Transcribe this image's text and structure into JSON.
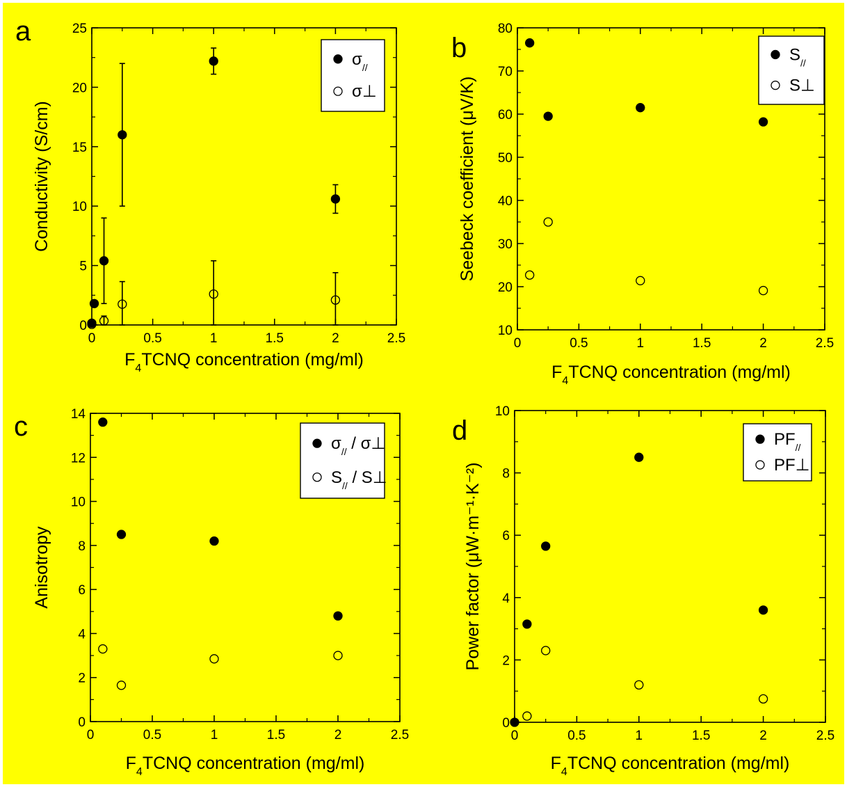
{
  "colors": {
    "background": "#ffff00",
    "ink": "#000000",
    "page": "#ffffff"
  },
  "chart_data": [
    {
      "type": "scatter",
      "panel": "a",
      "xlabel": {
        "pre": "F",
        "sub": "4",
        "post": "TCNQ concentration (mg/ml)"
      },
      "ylabel": "Conductivity (S/cm)",
      "xlim": [
        0,
        2.5
      ],
      "ylim": [
        0,
        25
      ],
      "xticks": [
        "0",
        "0.5",
        "1",
        "1.5",
        "2",
        "2.5"
      ],
      "yticks": [
        "0",
        "5",
        "10",
        "15",
        "20",
        "25"
      ],
      "legend_position": "top-right",
      "series": [
        {
          "legend": {
            "main": "σ",
            "sub": "//",
            "post": ""
          },
          "marker": "filled",
          "x": [
            0,
            0.02,
            0.1,
            0.25,
            1,
            2
          ],
          "y": [
            0.15,
            1.8,
            5.4,
            16,
            22.2,
            10.6
          ],
          "yerr_low": [
            0,
            0,
            3.6,
            6,
            1.1,
            1.2
          ],
          "yerr_high": [
            0,
            0,
            3.6,
            6,
            1.1,
            1.2
          ]
        },
        {
          "legend": {
            "main": "σ⊥",
            "sub": "",
            "post": ""
          },
          "marker": "open",
          "x": [
            0,
            0.1,
            0.25,
            1,
            2
          ],
          "y": [
            0.05,
            0.35,
            1.75,
            2.6,
            2.1
          ],
          "yerr_low": [
            0,
            0.35,
            1.75,
            2.6,
            2.1
          ],
          "yerr_high": [
            0,
            0.4,
            1.9,
            2.8,
            2.3
          ]
        }
      ]
    },
    {
      "type": "scatter",
      "panel": "b",
      "xlabel": {
        "pre": "F",
        "sub": "4",
        "post": "TCNQ concentration (mg/ml)"
      },
      "ylabel": "Seebeck coefficient (μV/K)",
      "xlim": [
        0,
        2.5
      ],
      "ylim": [
        10,
        80
      ],
      "xticks": [
        "0",
        "0.5",
        "1",
        "1.5",
        "2",
        "2.5"
      ],
      "yticks": [
        "10",
        "20",
        "30",
        "40",
        "50",
        "60",
        "70",
        "80"
      ],
      "legend_position": "top-right",
      "series": [
        {
          "legend": {
            "main": "S",
            "sub": "//",
            "post": ""
          },
          "marker": "filled",
          "x": [
            0.1,
            0.25,
            1,
            2
          ],
          "y": [
            76.5,
            59.5,
            61.5,
            58.2
          ]
        },
        {
          "legend": {
            "main": "S⊥",
            "sub": "",
            "post": ""
          },
          "marker": "open",
          "x": [
            0.1,
            0.25,
            1,
            2
          ],
          "y": [
            22.7,
            35,
            21.4,
            19.1
          ]
        }
      ]
    },
    {
      "type": "scatter",
      "panel": "c",
      "xlabel": {
        "pre": "F",
        "sub": "4",
        "post": "TCNQ concentration (mg/ml)"
      },
      "ylabel": "Anisotropy",
      "xlim": [
        0,
        2.5
      ],
      "ylim": [
        0,
        14
      ],
      "xticks": [
        "0",
        "0.5",
        "1",
        "1.5",
        "2",
        "2.5"
      ],
      "yticks": [
        "0",
        "2",
        "4",
        "6",
        "8",
        "10",
        "12",
        "14"
      ],
      "legend_position": "top-right",
      "series": [
        {
          "legend": {
            "main": "σ",
            "sub": "//",
            "post": " / σ⊥"
          },
          "marker": "filled",
          "x": [
            0.1,
            0.25,
            1,
            2
          ],
          "y": [
            13.6,
            8.5,
            8.2,
            4.8
          ]
        },
        {
          "legend": {
            "main": "S",
            "sub": "//",
            "post": " / S⊥"
          },
          "marker": "open",
          "x": [
            0.1,
            0.25,
            1,
            2
          ],
          "y": [
            3.3,
            1.65,
            2.85,
            3.0
          ]
        }
      ]
    },
    {
      "type": "scatter",
      "panel": "d",
      "xlabel": {
        "pre": "F",
        "sub": "4",
        "post": "TCNQ concentration (mg/ml)"
      },
      "ylabel": "Power factor (μW·m⁻¹·K⁻²)",
      "xlim": [
        0,
        2.5
      ],
      "ylim": [
        0,
        10
      ],
      "xticks": [
        "0",
        "0.5",
        "1",
        "1.5",
        "2",
        "2.5"
      ],
      "yticks": [
        "0",
        "2",
        "4",
        "6",
        "8",
        "10"
      ],
      "legend_position": "top-right",
      "series": [
        {
          "legend": {
            "main": "PF",
            "sub": "//",
            "post": ""
          },
          "marker": "filled",
          "x": [
            0,
            0.1,
            0.25,
            1,
            2
          ],
          "y": [
            0,
            3.15,
            5.65,
            8.5,
            3.6
          ]
        },
        {
          "legend": {
            "main": "PF⊥",
            "sub": "",
            "post": ""
          },
          "marker": "open",
          "x": [
            0.1,
            0.25,
            1,
            2
          ],
          "y": [
            0.2,
            2.3,
            1.2,
            0.75
          ]
        }
      ]
    }
  ]
}
